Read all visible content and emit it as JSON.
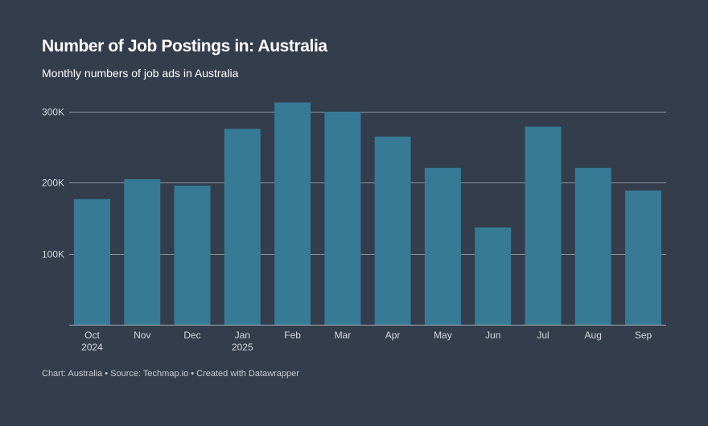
{
  "header": {
    "title": "Number of Job Postings in: Australia",
    "subtitle": "Monthly numbers of job ads in Australia"
  },
  "footer": {
    "text": "Chart: Australia • Source: Techmap.io • Created with Datawrapper"
  },
  "colors": {
    "background": "#333d4c",
    "bar": "#367a96",
    "grid": "#8a929c",
    "axis": "#a8afb7",
    "tick_text": "#d4d8dc"
  },
  "chart_data": {
    "type": "bar",
    "title": "Number of Job Postings in: Australia",
    "subtitle": "Monthly numbers of job ads in Australia",
    "xlabel": "",
    "ylabel": "",
    "categories": [
      "Oct",
      "Nov",
      "Dec",
      "Jan",
      "Feb",
      "Mar",
      "Apr",
      "May",
      "Jun",
      "Jul",
      "Aug",
      "Sep"
    ],
    "category_sublabels": [
      "2024",
      "",
      "",
      "2025",
      "",
      "",
      "",
      "",
      "",
      "",
      "",
      ""
    ],
    "values": [
      177000,
      205000,
      196000,
      276000,
      313000,
      300000,
      265000,
      221000,
      137000,
      279000,
      221000,
      189000
    ],
    "ylim": [
      0,
      300000
    ],
    "yticks": [
      100000,
      200000,
      300000
    ],
    "ytick_labels": [
      "100K",
      "200K",
      "300K"
    ],
    "grid": true
  }
}
